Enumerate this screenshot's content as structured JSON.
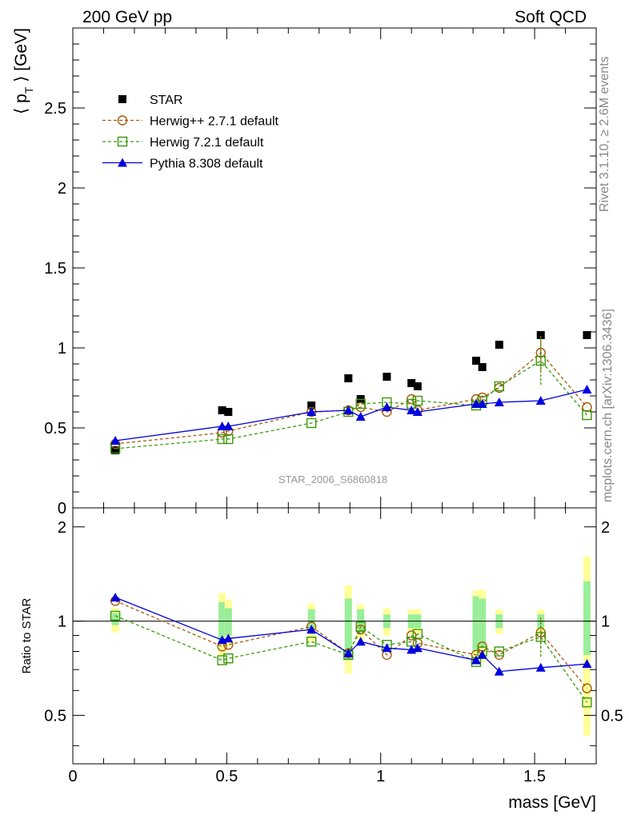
{
  "header": {
    "left": "200 GeV pp",
    "right": "Soft QCD"
  },
  "side": {
    "rivet": "Rivet 3.1.10, ≥ 2.6M events",
    "mcplots": "mcplots.cern.ch [arXiv:1306.3436]"
  },
  "watermark": "STAR_2006_S6860818",
  "chart_data": [
    {
      "type": "scatter",
      "panel": "main",
      "ylabel": "⟨ p_T ⟩ [GeV]",
      "xlim": [
        0,
        1.7
      ],
      "ylim": [
        0,
        3.0
      ],
      "yticks": [
        "0",
        "0.5",
        "1",
        "1.5",
        "2",
        "2.5"
      ],
      "legend_position": "upper-left",
      "series": [
        {
          "name": "STAR",
          "style": "data",
          "color": "#000000",
          "marker": "square-filled",
          "points": [
            [
              0.138,
              0.36
            ],
            [
              0.485,
              0.61
            ],
            [
              0.505,
              0.6
            ],
            [
              0.775,
              0.64
            ],
            [
              0.895,
              0.81
            ],
            [
              0.935,
              0.68
            ],
            [
              1.02,
              0.82
            ],
            [
              1.1,
              0.78
            ],
            [
              1.12,
              0.76
            ],
            [
              1.31,
              0.92
            ],
            [
              1.33,
              0.88
            ],
            [
              1.385,
              1.02
            ],
            [
              1.52,
              1.08
            ],
            [
              1.67,
              1.08
            ]
          ]
        },
        {
          "name": "Herwig++ 2.7.1 default",
          "style": "dashed",
          "color": "#a85a0a",
          "marker": "circle-open",
          "points": [
            [
              0.138,
              0.4
            ],
            [
              0.485,
              0.47
            ],
            [
              0.505,
              0.48
            ],
            [
              0.775,
              0.6
            ],
            [
              0.895,
              0.61
            ],
            [
              0.935,
              0.63
            ],
            [
              1.02,
              0.6
            ],
            [
              1.1,
              0.68
            ],
            [
              1.12,
              0.61
            ],
            [
              1.31,
              0.68
            ],
            [
              1.33,
              0.69
            ],
            [
              1.385,
              0.75
            ],
            [
              1.52,
              0.97
            ],
            [
              1.67,
              0.63
            ]
          ],
          "error_points": [
            [
              1.52,
              0.86,
              1.08
            ]
          ]
        },
        {
          "name": "Herwig 7.2.1 default",
          "style": "dashed",
          "color": "#3a9a0a",
          "marker": "square-open",
          "points": [
            [
              0.138,
              0.37
            ],
            [
              0.485,
              0.43
            ],
            [
              0.505,
              0.43
            ],
            [
              0.775,
              0.53
            ],
            [
              0.895,
              0.6
            ],
            [
              0.935,
              0.65
            ],
            [
              1.02,
              0.66
            ],
            [
              1.1,
              0.65
            ],
            [
              1.12,
              0.67
            ],
            [
              1.31,
              0.64
            ],
            [
              1.33,
              0.67
            ],
            [
              1.385,
              0.76
            ],
            [
              1.52,
              0.92
            ],
            [
              1.67,
              0.58
            ]
          ],
          "error_points": [
            [
              1.52,
              0.77,
              1.07
            ]
          ]
        },
        {
          "name": "Pythia 8.308 default",
          "style": "solid",
          "color": "#0000dd",
          "marker": "triangle-filled",
          "points": [
            [
              0.138,
              0.42
            ],
            [
              0.485,
              0.51
            ],
            [
              0.505,
              0.51
            ],
            [
              0.775,
              0.6
            ],
            [
              0.895,
              0.61
            ],
            [
              0.935,
              0.57
            ],
            [
              1.02,
              0.63
            ],
            [
              1.1,
              0.61
            ],
            [
              1.12,
              0.6
            ],
            [
              1.31,
              0.65
            ],
            [
              1.33,
              0.65
            ],
            [
              1.385,
              0.66
            ],
            [
              1.52,
              0.67
            ],
            [
              1.67,
              0.74
            ]
          ]
        }
      ]
    },
    {
      "type": "scatter",
      "panel": "ratio",
      "ylabel": "Ratio to STAR",
      "xlabel": "mass [GeV]",
      "xlim": [
        0,
        1.7
      ],
      "ylim": [
        0.35,
        2.3
      ],
      "yticks": [
        "0.5",
        "1",
        "2"
      ],
      "xticks": [
        "0",
        "0.5",
        "1",
        "1.5"
      ],
      "reference_line": 1,
      "uncertainty_bands": [
        {
          "x": 0.138,
          "green": [
            0.97,
            1.06
          ],
          "yellow": [
            0.92,
            1.1
          ]
        },
        {
          "x": 0.485,
          "green": [
            0.85,
            1.15
          ],
          "yellow": [
            0.77,
            1.23
          ]
        },
        {
          "x": 0.505,
          "green": [
            0.9,
            1.1
          ],
          "yellow": [
            0.83,
            1.17
          ]
        },
        {
          "x": 0.775,
          "green": [
            0.91,
            1.09
          ],
          "yellow": [
            0.86,
            1.14
          ]
        },
        {
          "x": 0.895,
          "green": [
            0.75,
            1.18
          ],
          "yellow": [
            0.68,
            1.3
          ]
        },
        {
          "x": 0.935,
          "green": [
            0.91,
            1.09
          ],
          "yellow": [
            0.87,
            1.13
          ]
        },
        {
          "x": 1.02,
          "green": [
            0.95,
            1.05
          ],
          "yellow": [
            0.9,
            1.1
          ]
        },
        {
          "x": 1.1,
          "green": [
            0.95,
            1.05
          ],
          "yellow": [
            0.91,
            1.09
          ]
        },
        {
          "x": 1.12,
          "green": [
            0.95,
            1.05
          ],
          "yellow": [
            0.91,
            1.09
          ]
        },
        {
          "x": 1.31,
          "green": [
            0.8,
            1.2
          ],
          "yellow": [
            0.74,
            1.25
          ]
        },
        {
          "x": 1.33,
          "green": [
            0.82,
            1.18
          ],
          "yellow": [
            0.74,
            1.26
          ]
        },
        {
          "x": 1.385,
          "green": [
            0.95,
            1.05
          ],
          "yellow": [
            0.91,
            1.09
          ]
        },
        {
          "x": 1.52,
          "green": [
            0.95,
            1.05
          ],
          "yellow": [
            0.91,
            1.09
          ]
        },
        {
          "x": 1.67,
          "green": [
            0.78,
            1.34
          ],
          "yellow": [
            0.43,
            1.61
          ]
        }
      ],
      "series": [
        {
          "name": "Herwig++ 2.7.1 default",
          "style": "dashed",
          "color": "#a85a0a",
          "marker": "circle-open",
          "points": [
            [
              0.138,
              1.16
            ],
            [
              0.485,
              0.83
            ],
            [
              0.505,
              0.84
            ],
            [
              0.775,
              0.96
            ],
            [
              0.895,
              0.79
            ],
            [
              0.935,
              0.94
            ],
            [
              1.02,
              0.78
            ],
            [
              1.1,
              0.9
            ],
            [
              1.12,
              0.85
            ],
            [
              1.31,
              0.78
            ],
            [
              1.33,
              0.83
            ],
            [
              1.385,
              0.78
            ],
            [
              1.52,
              0.92
            ],
            [
              1.67,
              0.61
            ]
          ],
          "error_points": [
            [
              1.52,
              0.82,
              1.03
            ]
          ]
        },
        {
          "name": "Herwig 7.2.1 default",
          "style": "dashed",
          "color": "#3a9a0a",
          "marker": "square-open",
          "points": [
            [
              0.138,
              1.04
            ],
            [
              0.485,
              0.75
            ],
            [
              0.505,
              0.76
            ],
            [
              0.775,
              0.86
            ],
            [
              0.895,
              0.78
            ],
            [
              0.935,
              0.96
            ],
            [
              1.02,
              0.84
            ],
            [
              1.1,
              0.86
            ],
            [
              1.12,
              0.91
            ],
            [
              1.31,
              0.74
            ],
            [
              1.33,
              0.8
            ],
            [
              1.385,
              0.8
            ],
            [
              1.52,
              0.89
            ],
            [
              1.67,
              0.55
            ]
          ],
          "error_points": [
            [
              1.52,
              0.77,
              1.0
            ]
          ]
        },
        {
          "name": "Pythia 8.308 default",
          "style": "solid",
          "color": "#0000dd",
          "marker": "triangle-filled",
          "points": [
            [
              0.138,
              1.19
            ],
            [
              0.485,
              0.87
            ],
            [
              0.505,
              0.88
            ],
            [
              0.775,
              0.94
            ],
            [
              0.895,
              0.79
            ],
            [
              0.935,
              0.86
            ],
            [
              1.02,
              0.82
            ],
            [
              1.1,
              0.81
            ],
            [
              1.12,
              0.82
            ],
            [
              1.31,
              0.75
            ],
            [
              1.33,
              0.78
            ],
            [
              1.385,
              0.69
            ],
            [
              1.52,
              0.71
            ],
            [
              1.67,
              0.73
            ]
          ]
        }
      ]
    }
  ]
}
